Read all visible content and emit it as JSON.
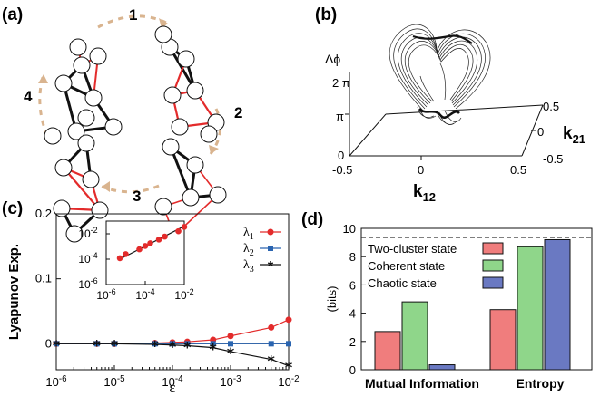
{
  "panels": {
    "a": {
      "label": "(a)",
      "steps": [
        "1",
        "2",
        "3",
        "4"
      ]
    },
    "b": {
      "label": "(b)",
      "zlabel": "Δϕ",
      "ztick_2pi": "2 π",
      "ztick_pi": "π",
      "ztick_0": "0",
      "xticks": [
        "-0.5",
        "0",
        "0.5"
      ],
      "yticks": [
        "0.5",
        "0",
        "-0.5"
      ],
      "xlabel_main": "k",
      "xlabel_sub": "12",
      "ylabel_main": "k",
      "ylabel_sub": "21"
    },
    "c": {
      "label": "(c)"
    },
    "d": {
      "label": "(d)"
    }
  },
  "colors": {
    "red": "#e32b2b",
    "blue": "#2a64b0",
    "black": "#111111",
    "arrow": "#d9b48f",
    "bar_red": "#f07d7d",
    "bar_green": "#8fd68a",
    "bar_blue": "#6a79c2"
  },
  "chart_data": [
    {
      "id": "c",
      "type": "line",
      "xscale": "log",
      "ylabel": "Lyapunov Exp.",
      "xlabel": "ε",
      "xlim": [
        1e-06,
        0.01
      ],
      "ylim": [
        -0.04,
        0.2
      ],
      "xticks": [
        "10-6",
        "10-5",
        "10-4",
        "10-3",
        "10-2"
      ],
      "yticks": [
        "0",
        "0.1",
        "0.2"
      ],
      "series": [
        {
          "name": "λ1",
          "color": "#e32b2b",
          "marker": "circle",
          "x": [
            1e-06,
            5e-06,
            1e-05,
            5e-05,
            0.0001,
            0.00018,
            0.0005,
            0.001,
            0.005,
            0.01
          ],
          "y": [
            0,
            0,
            0,
            0.001,
            0.002,
            0.003,
            0.006,
            0.012,
            0.025,
            0.037
          ]
        },
        {
          "name": "λ2",
          "color": "#2a64b0",
          "marker": "square",
          "x": [
            1e-06,
            5e-06,
            1e-05,
            5e-05,
            0.0001,
            0.00018,
            0.0005,
            0.001,
            0.005,
            0.01
          ],
          "y": [
            0,
            0,
            0,
            0,
            0,
            0,
            0,
            0,
            0,
            0
          ]
        },
        {
          "name": "λ3",
          "color": "#111111",
          "marker": "star",
          "x": [
            1e-06,
            5e-06,
            1e-05,
            5e-05,
            0.0001,
            0.00018,
            0.0005,
            0.001,
            0.005,
            0.01
          ],
          "y": [
            0,
            0,
            0,
            -0.001,
            -0.002,
            -0.003,
            -0.006,
            -0.012,
            -0.024,
            -0.034
          ]
        }
      ],
      "inset": {
        "xscale": "log",
        "yscale": "log",
        "xlim": [
          1e-06,
          0.01
        ],
        "ylim": [
          1e-06,
          0.1
        ],
        "xticks": [
          "10-6",
          "10-4",
          "10-2"
        ],
        "yticks": [
          "10-6",
          "10-4",
          "10-2"
        ],
        "x": [
          5e-06,
          1e-05,
          5e-05,
          0.0001,
          0.00018,
          0.0005,
          0.001,
          0.005,
          0.01
        ],
        "y": [
          0.00012,
          0.00025,
          0.0006,
          0.0011,
          0.0018,
          0.0035,
          0.006,
          0.016,
          0.035
        ]
      }
    },
    {
      "id": "d",
      "type": "bar",
      "ylabel": "(bits)",
      "ylim": [
        0,
        10
      ],
      "yticks": [
        "0",
        "2",
        "4",
        "6",
        "8",
        "10"
      ],
      "categories": [
        "Mutual Information",
        "Entropy"
      ],
      "series": [
        {
          "name": "Two-cluster state",
          "color": "#f07d7d",
          "values": [
            2.7,
            4.25
          ]
        },
        {
          "name": "Coherent state",
          "color": "#8fd68a",
          "values": [
            4.8,
            8.7
          ]
        },
        {
          "name": "Chaotic state",
          "color": "#6a79c2",
          "values": [
            0.35,
            9.2
          ]
        }
      ],
      "reference_line": 9.35
    }
  ]
}
